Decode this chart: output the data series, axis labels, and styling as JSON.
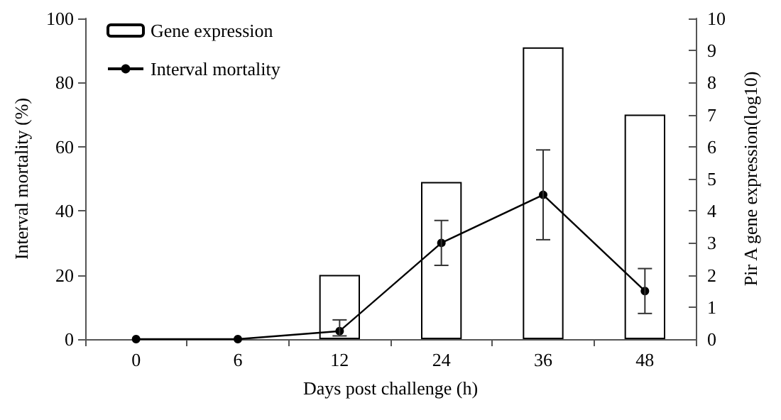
{
  "chart_data": {
    "type": "bar",
    "xlabel": "Days post challenge (h)",
    "ylabel": "Interval mortality (%)",
    "y2label": "Pir A gene expression(log10)",
    "categories": [
      "0",
      "6",
      "12",
      "24",
      "36",
      "48"
    ],
    "series": [
      {
        "name": "Gene expression",
        "axis": "y2",
        "color": "#ffffff",
        "values": [
          null,
          null,
          2,
          4.9,
          9.1,
          7
        ]
      },
      {
        "name": "Interval mortality",
        "type": "line",
        "color": "#000000",
        "marker": "circle",
        "values": [
          0,
          0,
          2.5,
          30,
          45,
          15
        ],
        "errors": [
          null,
          null,
          [
            1,
            6
          ],
          [
            23,
            37
          ],
          [
            31,
            59
          ],
          [
            8,
            22
          ]
        ]
      }
    ],
    "ylim": [
      0,
      100
    ],
    "yticks": [
      0,
      20,
      40,
      60,
      80,
      100
    ],
    "y2lim": [
      0,
      10
    ],
    "y2ticks": [
      0,
      1,
      2,
      3,
      4,
      5,
      6,
      7,
      8,
      9,
      10
    ],
    "grid": false,
    "legend": "top left"
  }
}
